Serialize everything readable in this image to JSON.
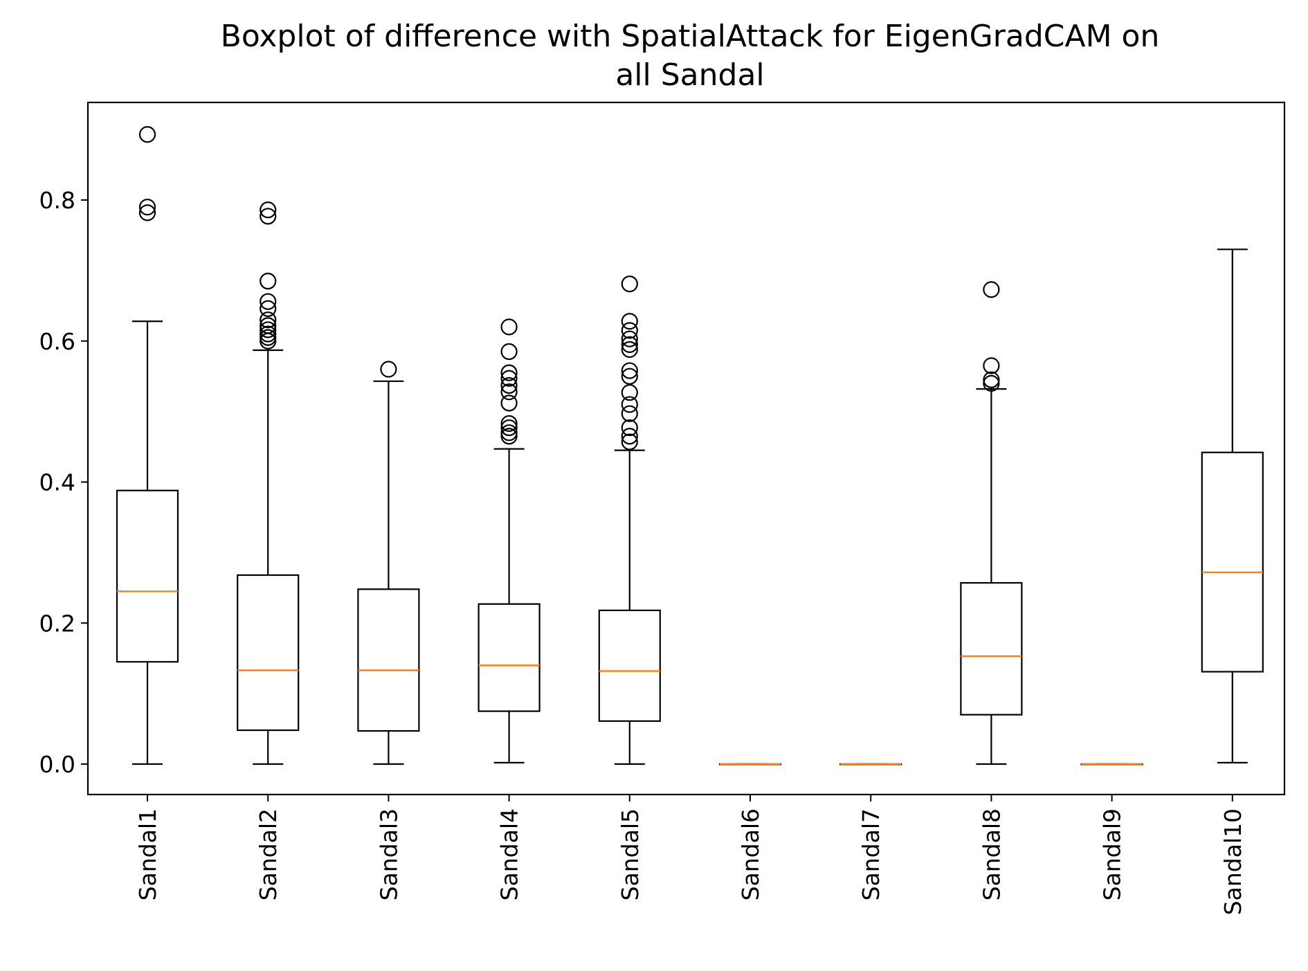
{
  "chart_data": {
    "type": "boxplot",
    "title_line1": "Boxplot of difference with SpatialAttack for EigenGradCAM on",
    "title_line2": "all Sandal",
    "xlabel": "",
    "ylabel": "",
    "ylim": [
      -0.044,
      0.935
    ],
    "yticks": [
      0.0,
      0.2,
      0.4,
      0.6,
      0.8
    ],
    "ytick_labels": [
      "0.0",
      "0.2",
      "0.4",
      "0.6",
      "0.8"
    ],
    "categories": [
      "Sandal1",
      "Sandal2",
      "Sandal3",
      "Sandal4",
      "Sandal5",
      "Sandal6",
      "Sandal7",
      "Sandal8",
      "Sandal9",
      "Sandal10"
    ],
    "boxes": [
      {
        "whisker_low": 0.0,
        "q1": 0.145,
        "median": 0.245,
        "q3": 0.388,
        "whisker_high": 0.628,
        "outliers": [
          0.782,
          0.79,
          0.893
        ]
      },
      {
        "whisker_low": 0.0,
        "q1": 0.048,
        "median": 0.133,
        "q3": 0.268,
        "whisker_high": 0.587,
        "outliers": [
          0.6,
          0.605,
          0.61,
          0.616,
          0.622,
          0.63,
          0.646,
          0.656,
          0.685,
          0.777,
          0.786
        ]
      },
      {
        "whisker_low": 0.0,
        "q1": 0.047,
        "median": 0.133,
        "q3": 0.248,
        "whisker_high": 0.543,
        "outliers": [
          0.56
        ]
      },
      {
        "whisker_low": 0.002,
        "q1": 0.075,
        "median": 0.14,
        "q3": 0.227,
        "whisker_high": 0.447,
        "outliers": [
          0.465,
          0.47,
          0.477,
          0.483,
          0.512,
          0.528,
          0.537,
          0.547,
          0.555,
          0.585,
          0.62
        ]
      },
      {
        "whisker_low": 0.0,
        "q1": 0.061,
        "median": 0.132,
        "q3": 0.218,
        "whisker_high": 0.445,
        "outliers": [
          0.457,
          0.465,
          0.477,
          0.497,
          0.51,
          0.527,
          0.55,
          0.558,
          0.588,
          0.595,
          0.603,
          0.615,
          0.628,
          0.681
        ]
      },
      {
        "whisker_low": 0.0,
        "q1": 0.0,
        "median": 0.0,
        "q3": 0.0,
        "whisker_high": 0.0,
        "outliers": []
      },
      {
        "whisker_low": 0.0,
        "q1": 0.0,
        "median": 0.0,
        "q3": 0.0,
        "whisker_high": 0.0,
        "outliers": []
      },
      {
        "whisker_low": 0.0,
        "q1": 0.07,
        "median": 0.153,
        "q3": 0.257,
        "whisker_high": 0.532,
        "outliers": [
          0.54,
          0.545,
          0.565,
          0.673
        ]
      },
      {
        "whisker_low": 0.0,
        "q1": 0.0,
        "median": 0.0,
        "q3": 0.0,
        "whisker_high": 0.0,
        "outliers": []
      },
      {
        "whisker_low": 0.002,
        "q1": 0.131,
        "median": 0.272,
        "q3": 0.442,
        "whisker_high": 0.73,
        "outliers": []
      }
    ],
    "grid": false,
    "legend": "none",
    "colors": {
      "box": "#000000",
      "median": "#ff7f0e",
      "outlier_edge": "#000000"
    }
  }
}
